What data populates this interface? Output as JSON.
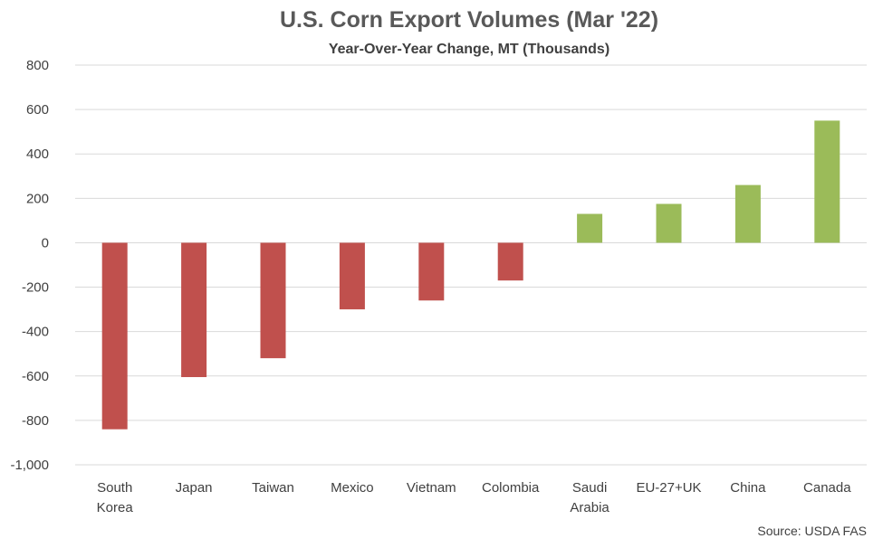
{
  "chart_data": {
    "type": "bar",
    "title": "U.S. Corn Export Volumes (Mar '22)",
    "subtitle": "Year-Over-Year Change, MT (Thousands)",
    "xlabel": "",
    "ylabel": "",
    "categories": [
      [
        "South",
        "Korea"
      ],
      [
        "Japan"
      ],
      [
        "Taiwan"
      ],
      [
        "Mexico"
      ],
      [
        "Vietnam"
      ],
      [
        "Colombia"
      ],
      [
        "Saudi",
        "Arabia"
      ],
      [
        "EU-27+UK"
      ],
      [
        "China"
      ],
      [
        "Canada"
      ]
    ],
    "values": [
      -840,
      -605,
      -520,
      -300,
      -260,
      -170,
      130,
      175,
      260,
      550
    ],
    "ylim": [
      -1000,
      800
    ],
    "yticks": [
      800,
      600,
      400,
      200,
      0,
      -200,
      -400,
      -600,
      -800,
      -1000
    ],
    "ytick_labels": [
      "800",
      "600",
      "400",
      "200",
      "0",
      "-200",
      "-400",
      "-600",
      "-800",
      "-1,000"
    ],
    "grid": true,
    "legend": "none",
    "colors": {
      "negative": "#c0504d",
      "positive": "#9bbb59"
    },
    "source": "Source: USDA FAS"
  }
}
